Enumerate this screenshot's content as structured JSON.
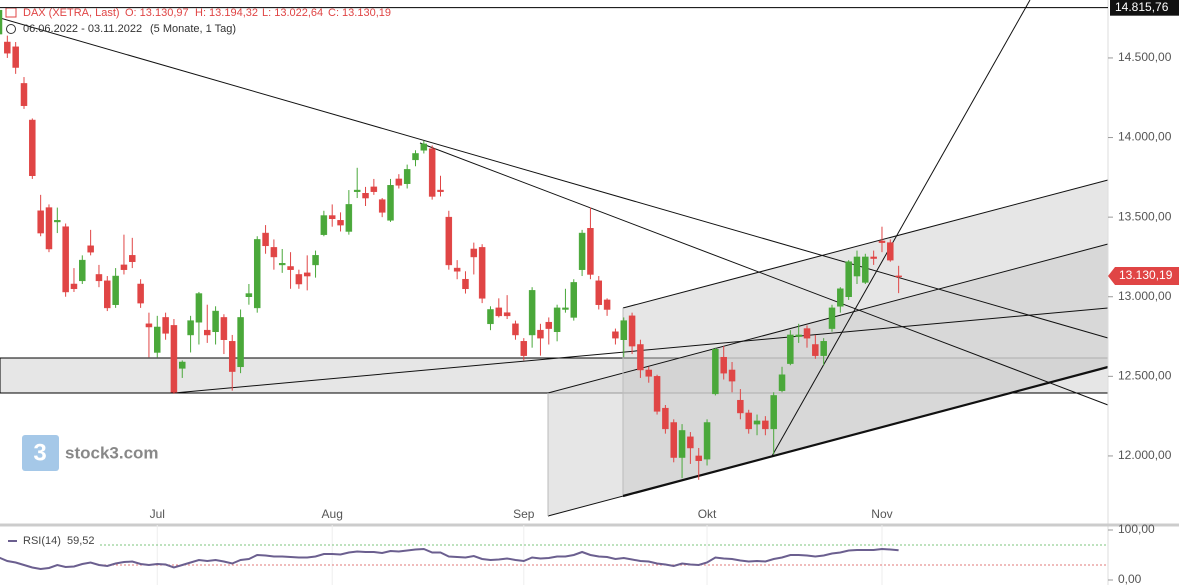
{
  "chart_data": [
    {
      "type": "candlestick",
      "title": "DAX (XETRA, Last)",
      "info": [
        "O: 13.130,97",
        "H: 13.194,32",
        "L: 13.022,64",
        "C: 13.130,19"
      ],
      "period": "06.06.2022 - 03.11.2022",
      "period_note": "(5 Monate, 1 Tag)",
      "watermark": "stock3.com",
      "logo_mark": "3",
      "categories": [
        null,
        null,
        null,
        null,
        null,
        null,
        null,
        null,
        null,
        null,
        null,
        null,
        null,
        null,
        null,
        null,
        null,
        null,
        null,
        "Jul",
        null,
        null,
        null,
        null,
        null,
        null,
        null,
        null,
        null,
        null,
        null,
        null,
        null,
        null,
        null,
        null,
        null,
        null,
        null,
        null,
        "Aug",
        null,
        null,
        null,
        null,
        null,
        null,
        null,
        null,
        null,
        null,
        null,
        null,
        null,
        null,
        null,
        null,
        null,
        null,
        null,
        null,
        null,
        null,
        "Sep",
        null,
        null,
        null,
        null,
        null,
        null,
        null,
        null,
        null,
        null,
        null,
        null,
        null,
        null,
        null,
        null,
        null,
        null,
        null,
        null,
        null,
        "Okt",
        null,
        null,
        null,
        null,
        null,
        null,
        null,
        null,
        null,
        null,
        null,
        null,
        null,
        null,
        null,
        null,
        null,
        null,
        null,
        null,
        "Nov",
        null,
        null
      ],
      "open": [
        14650,
        14600,
        14570,
        14340,
        14110,
        13540,
        13560,
        13470,
        13440,
        13080,
        13100,
        13320,
        13140,
        13100,
        12950,
        13200,
        13260,
        13080,
        12830,
        12650,
        12870,
        12820,
        12550,
        12760,
        12840,
        12790,
        12780,
        12870,
        12720,
        12560,
        13000,
        12930,
        13400,
        13310,
        13200,
        13190,
        13140,
        13150,
        13200,
        13390,
        13510,
        13480,
        13410,
        13660,
        13650,
        13690,
        13610,
        13480,
        13740,
        13710,
        13860,
        13920,
        13930,
        13670,
        13500,
        13180,
        13110,
        13300,
        13310,
        12830,
        12930,
        12900,
        12830,
        12720,
        12760,
        12790,
        12840,
        12780,
        12920,
        12870,
        13170,
        13430,
        13100,
        12980,
        12780,
        12730,
        12880,
        12700,
        12540,
        12500,
        12300,
        12210,
        11990,
        12120,
        12000,
        11980,
        12390,
        12620,
        12540,
        12350,
        12270,
        12200,
        12220,
        12170,
        12410,
        12580,
        12750,
        12800,
        12700,
        12630,
        12800,
        12940,
        13000,
        13130,
        13090,
        13250,
        13350,
        13340,
        13130.97
      ],
      "high": [
        14820,
        14640,
        14600,
        14380,
        14120,
        13640,
        13580,
        13560,
        13460,
        13180,
        13260,
        13420,
        13200,
        13130,
        13180,
        13390,
        13370,
        13110,
        12900,
        12880,
        12900,
        12860,
        12600,
        12880,
        13030,
        12950,
        12940,
        12890,
        12760,
        12920,
        13080,
        13380,
        13450,
        13360,
        13300,
        13280,
        13170,
        13260,
        13290,
        13540,
        13580,
        13530,
        13670,
        13810,
        13690,
        13740,
        13620,
        13740,
        13770,
        13830,
        13920,
        13980,
        13950,
        13760,
        13540,
        13230,
        13160,
        13340,
        13330,
        12940,
        12990,
        13010,
        12850,
        12740,
        13060,
        12830,
        12870,
        12950,
        13050,
        13110,
        13420,
        13560,
        13130,
        12990,
        12800,
        12870,
        12900,
        12730,
        12560,
        12510,
        12320,
        12230,
        12200,
        12150,
        12050,
        12230,
        12680,
        12690,
        12590,
        12420,
        12290,
        12260,
        12250,
        12400,
        12560,
        12790,
        12830,
        12820,
        12760,
        12740,
        12950,
        13060,
        13230,
        13290,
        13270,
        13290,
        13440,
        13360,
        13194.32
      ],
      "low": [
        14640,
        14500,
        14400,
        14180,
        13740,
        13380,
        13280,
        13400,
        13000,
        13030,
        13080,
        13260,
        13060,
        12910,
        12930,
        13140,
        13180,
        12930,
        12620,
        12620,
        12730,
        12390,
        12490,
        12650,
        12700,
        12710,
        12700,
        12640,
        12410,
        12520,
        12950,
        12900,
        13270,
        13170,
        13150,
        13050,
        13050,
        13040,
        13120,
        13380,
        13440,
        13410,
        13390,
        13620,
        13570,
        13640,
        13500,
        13470,
        13680,
        13680,
        13820,
        13900,
        13610,
        13630,
        13170,
        13110,
        13020,
        13140,
        12960,
        12790,
        12870,
        12860,
        12730,
        12600,
        12680,
        12630,
        12700,
        12720,
        12900,
        12850,
        13130,
        13110,
        12920,
        12880,
        12700,
        12620,
        12640,
        12490,
        12460,
        12260,
        12140,
        11960,
        11860,
        11950,
        11850,
        11940,
        12380,
        12480,
        12400,
        12230,
        12140,
        12130,
        12130,
        12010,
        12400,
        12570,
        12710,
        12680,
        12610,
        12570,
        12780,
        12900,
        12980,
        13080,
        13080,
        13200,
        13280,
        13220,
        13022.64
      ],
      "close": [
        14800,
        14530,
        14440,
        14200,
        13760,
        13400,
        13300,
        13480,
        13030,
        13050,
        13230,
        13280,
        13100,
        12930,
        13130,
        13170,
        13220,
        12960,
        12810,
        12810,
        12770,
        12400,
        12590,
        12850,
        13020,
        12760,
        12910,
        12730,
        12530,
        12870,
        13020,
        13360,
        13320,
        13250,
        13210,
        13170,
        13080,
        13130,
        13260,
        13510,
        13490,
        13450,
        13580,
        13670,
        13620,
        13660,
        13530,
        13700,
        13700,
        13800,
        13900,
        13960,
        13630,
        13660,
        13200,
        13160,
        13050,
        13250,
        12990,
        12920,
        12880,
        12880,
        12760,
        12630,
        13040,
        12740,
        12800,
        12930,
        12930,
        13090,
        13400,
        13140,
        12950,
        12920,
        12740,
        12850,
        12690,
        12540,
        12500,
        12280,
        12170,
        11990,
        12160,
        12050,
        11970,
        12210,
        12670,
        12520,
        12470,
        12270,
        12170,
        12220,
        12170,
        12380,
        12510,
        12760,
        12760,
        12740,
        12630,
        12720,
        12930,
        13050,
        13220,
        13250,
        13250,
        13240,
        13340,
        13230,
        13130.19
      ],
      "up_color": "#4aa83a",
      "down_color": "#e04545",
      "ylim": [
        11585,
        14864
      ],
      "yticks": [
        {
          "value": 12000,
          "label": "12.000,00"
        },
        {
          "value": 12500,
          "label": "12.500,00"
        },
        {
          "value": 13000,
          "label": "13.000,00"
        },
        {
          "value": 13500,
          "label": "13.500,00"
        },
        {
          "value": 14000,
          "label": "14.000,00"
        },
        {
          "value": 14500,
          "label": "14.500,00"
        }
      ],
      "hline": {
        "value": 14815.76,
        "label": "14.815,76"
      },
      "last_price": {
        "value": 13130.19,
        "label": "13.130,19"
      }
    },
    {
      "type": "line",
      "name": "RSI(14)",
      "last_value_label": "59,52",
      "color": "#6b5f8f",
      "values": [
        45,
        38,
        35,
        30,
        25,
        22,
        24,
        30,
        26,
        27,
        32,
        35,
        30,
        28,
        33,
        36,
        37,
        32,
        30,
        32,
        31,
        25,
        30,
        35,
        40,
        38,
        40,
        37,
        33,
        40,
        42,
        50,
        49,
        47,
        47,
        46,
        45,
        45,
        47,
        52,
        52,
        51,
        55,
        57,
        56,
        56,
        54,
        58,
        57,
        59,
        61,
        62,
        55,
        55,
        47,
        46,
        45,
        48,
        42,
        40,
        41,
        43,
        40,
        38,
        45,
        43,
        44,
        47,
        47,
        50,
        56,
        50,
        47,
        46,
        42,
        44,
        41,
        38,
        37,
        33,
        31,
        28,
        33,
        31,
        30,
        35,
        45,
        43,
        42,
        39,
        37,
        38,
        37,
        42,
        45,
        50,
        50,
        49,
        47,
        49,
        53,
        55,
        59,
        60,
        60,
        60,
        62,
        61,
        59.52
      ],
      "ylim": [
        0,
        100
      ],
      "yticks": [
        {
          "value": 100,
          "label": "100,00"
        },
        {
          "value": 0,
          "label": "0,00"
        }
      ],
      "levels": [
        70,
        30
      ]
    }
  ]
}
